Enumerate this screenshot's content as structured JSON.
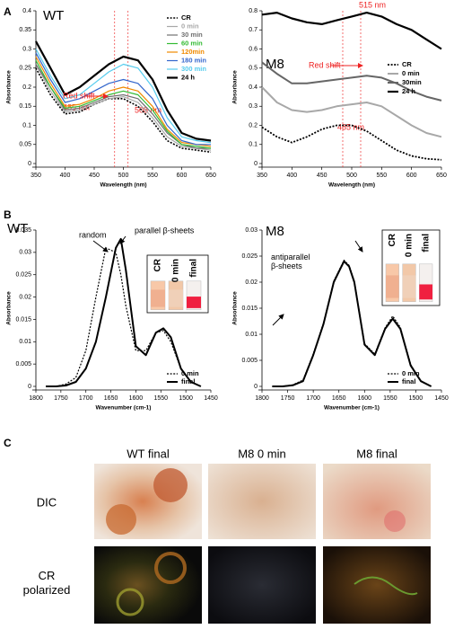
{
  "panel_labels": [
    "A",
    "B",
    "C"
  ],
  "chart_data": [
    {
      "type": "line",
      "label": "WT",
      "x_label": "Wavelength (nm)",
      "y_label": "Absorbance",
      "x": [
        350,
        375,
        400,
        425,
        450,
        475,
        500,
        525,
        550,
        575,
        600,
        625,
        650
      ],
      "xlim": [
        350,
        650
      ],
      "xticks": [
        350,
        400,
        450,
        500,
        550,
        600,
        650
      ],
      "ylim": [
        0,
        0.4
      ],
      "yticks": [
        0,
        0.05,
        0.1,
        0.15,
        0.2,
        0.25,
        0.3,
        0.35,
        0.4
      ],
      "series": [
        {
          "name": "CR",
          "color": "#000000",
          "dash": true,
          "width": 1.6,
          "values": [
            0.25,
            0.18,
            0.13,
            0.135,
            0.155,
            0.17,
            0.17,
            0.15,
            0.11,
            0.06,
            0.04,
            0.035,
            0.03
          ]
        },
        {
          "name": "0 min",
          "color": "#a8a8a8",
          "dash": false,
          "width": 1.2,
          "values": [
            0.26,
            0.19,
            0.135,
            0.14,
            0.155,
            0.17,
            0.175,
            0.16,
            0.12,
            0.07,
            0.045,
            0.04,
            0.035
          ]
        },
        {
          "name": "30 min",
          "color": "#707070",
          "dash": false,
          "width": 1.2,
          "values": [
            0.26,
            0.2,
            0.14,
            0.145,
            0.16,
            0.175,
            0.18,
            0.17,
            0.13,
            0.08,
            0.05,
            0.04,
            0.04
          ]
        },
        {
          "name": "60 min",
          "color": "#33bb33",
          "dash": false,
          "width": 1.2,
          "values": [
            0.27,
            0.2,
            0.145,
            0.15,
            0.165,
            0.18,
            0.19,
            0.18,
            0.14,
            0.085,
            0.05,
            0.045,
            0.04
          ]
        },
        {
          "name": "120min",
          "color": "#f08a00",
          "dash": false,
          "width": 1.2,
          "values": [
            0.28,
            0.21,
            0.15,
            0.155,
            0.17,
            0.19,
            0.2,
            0.19,
            0.15,
            0.09,
            0.055,
            0.05,
            0.045
          ]
        },
        {
          "name": "180 min",
          "color": "#3366cc",
          "dash": false,
          "width": 1.2,
          "values": [
            0.29,
            0.22,
            0.16,
            0.17,
            0.19,
            0.21,
            0.22,
            0.21,
            0.17,
            0.1,
            0.06,
            0.05,
            0.05
          ]
        },
        {
          "name": "300 min",
          "color": "#55ccee",
          "dash": false,
          "width": 1.2,
          "values": [
            0.3,
            0.23,
            0.17,
            0.18,
            0.21,
            0.24,
            0.26,
            0.25,
            0.2,
            0.12,
            0.07,
            0.06,
            0.055
          ]
        },
        {
          "name": "24 h",
          "color": "#000000",
          "dash": false,
          "width": 2.2,
          "values": [
            0.32,
            0.25,
            0.18,
            0.2,
            0.23,
            0.26,
            0.28,
            0.27,
            0.22,
            0.14,
            0.08,
            0.065,
            0.06
          ]
        }
      ],
      "markers": [
        {
          "x": 485,
          "label": "485 nm"
        },
        {
          "x": 508,
          "label": "508 nm"
        }
      ],
      "annotations": [
        "Red shift"
      ]
    },
    {
      "type": "line",
      "label": "M8",
      "x_label": "Wavelength (nm)",
      "y_label": "Absorbance",
      "x": [
        350,
        375,
        400,
        425,
        450,
        475,
        500,
        525,
        550,
        575,
        600,
        625,
        650
      ],
      "xlim": [
        350,
        650
      ],
      "xticks": [
        350,
        400,
        450,
        500,
        550,
        600,
        650
      ],
      "ylim": [
        0,
        0.8
      ],
      "yticks": [
        0,
        0.1,
        0.2,
        0.3,
        0.4,
        0.5,
        0.6,
        0.7,
        0.8
      ],
      "series": [
        {
          "name": "CR",
          "color": "#000000",
          "dash": true,
          "width": 1.8,
          "values": [
            0.19,
            0.14,
            0.11,
            0.14,
            0.18,
            0.2,
            0.2,
            0.17,
            0.12,
            0.07,
            0.04,
            0.025,
            0.02
          ]
        },
        {
          "name": "0 min",
          "color": "#a8a8a8",
          "dash": false,
          "width": 2,
          "values": [
            0.4,
            0.32,
            0.28,
            0.27,
            0.28,
            0.3,
            0.31,
            0.32,
            0.3,
            0.25,
            0.2,
            0.16,
            0.14
          ]
        },
        {
          "name": "30min",
          "color": "#666666",
          "dash": false,
          "width": 2,
          "values": [
            0.53,
            0.47,
            0.42,
            0.42,
            0.43,
            0.44,
            0.45,
            0.46,
            0.45,
            0.42,
            0.38,
            0.35,
            0.33
          ]
        },
        {
          "name": "24 h",
          "color": "#000000",
          "dash": false,
          "width": 2.2,
          "values": [
            0.78,
            0.79,
            0.76,
            0.74,
            0.73,
            0.75,
            0.77,
            0.79,
            0.77,
            0.73,
            0.7,
            0.65,
            0.6
          ]
        }
      ],
      "markers": [
        {
          "x": 515,
          "label": "515 nm"
        },
        {
          "x": 485,
          "label": "485 nm"
        }
      ],
      "annotations": [
        "Red shift"
      ]
    },
    {
      "type": "line",
      "label": "WT",
      "x_label": "Wavenumber (cm-1)",
      "y_label": "Absorbance",
      "x": [
        1780,
        1760,
        1740,
        1720,
        1700,
        1680,
        1660,
        1640,
        1630,
        1620,
        1600,
        1580,
        1560,
        1545,
        1530,
        1510,
        1490,
        1470
      ],
      "xlim": [
        1800,
        1450
      ],
      "xticks": [
        1800,
        1750,
        1700,
        1650,
        1600,
        1550,
        1500,
        1450
      ],
      "ylim": [
        0,
        0.035
      ],
      "yticks": [
        0,
        0.005,
        0.01,
        0.015,
        0.02,
        0.025,
        0.03,
        0.035
      ],
      "series": [
        {
          "name": "0 min",
          "color": "#000000",
          "dash": true,
          "width": 1.2,
          "values": [
            0,
            0,
            0.0005,
            0.002,
            0.008,
            0.02,
            0.031,
            0.03,
            0.025,
            0.018,
            0.008,
            0.008,
            0.012,
            0.0125,
            0.01,
            0.004,
            0.001,
            0
          ]
        },
        {
          "name": "final",
          "color": "#000000",
          "dash": false,
          "width": 2,
          "values": [
            0,
            0,
            0.0002,
            0.001,
            0.004,
            0.01,
            0.02,
            0.031,
            0.033,
            0.026,
            0.009,
            0.007,
            0.012,
            0.013,
            0.011,
            0.004,
            0.001,
            0
          ]
        }
      ],
      "annotations": [
        "random",
        "parallel β-sheets"
      ],
      "inset_labels": [
        "CR",
        "0 min",
        "final"
      ]
    },
    {
      "type": "line",
      "label": "M8",
      "x_label": "Wavenumber (cm-1)",
      "y_label": "Absorbance",
      "x": [
        1780,
        1760,
        1740,
        1720,
        1700,
        1680,
        1660,
        1640,
        1630,
        1620,
        1600,
        1580,
        1560,
        1545,
        1530,
        1510,
        1490,
        1470
      ],
      "xlim": [
        1800,
        1450
      ],
      "xticks": [
        1800,
        1750,
        1700,
        1650,
        1600,
        1550,
        1500,
        1450
      ],
      "ylim": [
        0,
        0.03
      ],
      "yticks": [
        0,
        0.005,
        0.01,
        0.015,
        0.02,
        0.025,
        0.03
      ],
      "series": [
        {
          "name": "0 min",
          "color": "#000000",
          "dash": true,
          "width": 1.2,
          "values": [
            0,
            0,
            0.0003,
            0.0012,
            0.0062,
            0.0122,
            0.0202,
            0.0242,
            0.0232,
            0.0202,
            0.0082,
            0.0062,
            0.0112,
            0.0135,
            0.0113,
            0.0042,
            0.001,
            0
          ]
        },
        {
          "name": "final",
          "color": "#000000",
          "dash": false,
          "width": 2,
          "values": [
            0,
            0,
            0.0002,
            0.001,
            0.006,
            0.012,
            0.02,
            0.024,
            0.023,
            0.02,
            0.008,
            0.006,
            0.011,
            0.013,
            0.011,
            0.004,
            0.001,
            0
          ]
        }
      ],
      "annotations": [
        "antiparallel β-sheets"
      ],
      "inset_labels": [
        "CR",
        "0 min",
        "final"
      ]
    }
  ],
  "micrographs": {
    "columns": [
      "WT final",
      "M8 0 min",
      "M8 final"
    ],
    "rows": [
      "DIC",
      "CR polarized"
    ]
  }
}
